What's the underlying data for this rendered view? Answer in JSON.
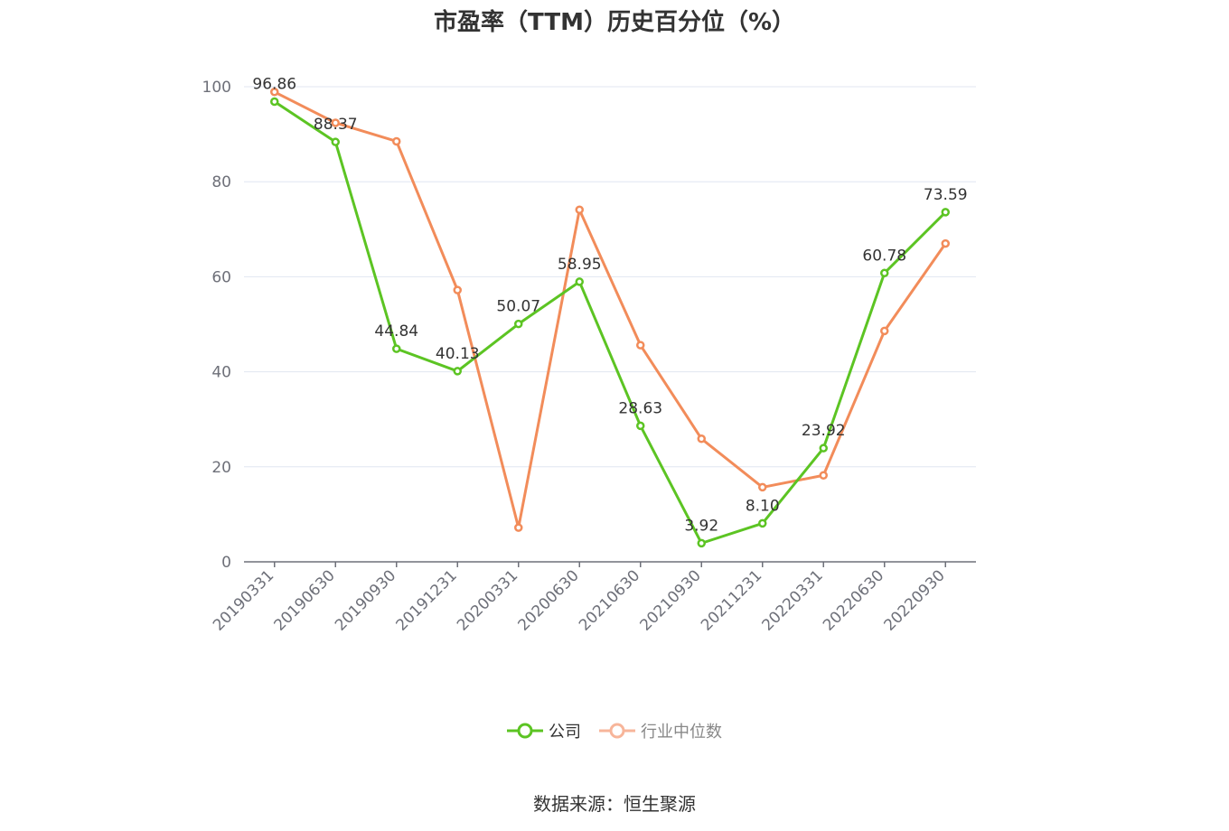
{
  "chart_data": {
    "type": "line",
    "title": "市盈率（TTM）历史百分位（%）",
    "categories": [
      "20190331",
      "20190630",
      "20190930",
      "20191231",
      "20200331",
      "20200630",
      "20210630",
      "20210930",
      "20211231",
      "20220331",
      "20220630",
      "20220930"
    ],
    "series": [
      {
        "name": "公司",
        "color": "#5cc423",
        "values": [
          96.86,
          88.37,
          44.84,
          40.13,
          50.07,
          58.95,
          28.63,
          3.92,
          8.1,
          23.92,
          60.78,
          73.59
        ],
        "labels": [
          "96.86",
          "88.37",
          "44.84",
          "40.13",
          "50.07",
          "58.95",
          "28.63",
          "3.92",
          "8.10",
          "23.92",
          "60.78",
          "73.59"
        ]
      },
      {
        "name": "行业中位数",
        "color": "#f28c5a",
        "values": [
          98.9,
          92.4,
          88.5,
          57.2,
          7.2,
          74.1,
          45.6,
          25.9,
          15.7,
          18.2,
          48.6,
          67.0
        ]
      }
    ],
    "ylim": [
      0,
      100
    ],
    "yticks": [
      0,
      20,
      40,
      60,
      80,
      100
    ],
    "grid": true,
    "legend": "bottom-center"
  },
  "source": "数据来源：恒生聚源"
}
